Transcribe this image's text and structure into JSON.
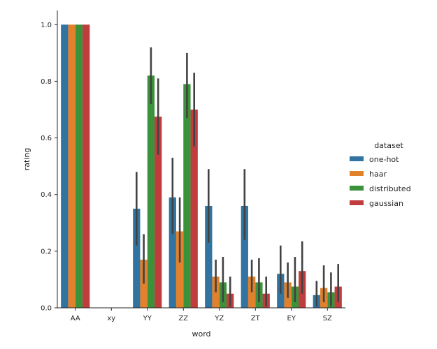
{
  "chart_data": {
    "type": "bar",
    "title": "",
    "xlabel": "word",
    "ylabel": "rating",
    "ylim": [
      0,
      1.05
    ],
    "yticks": [
      0.0,
      0.2,
      0.4,
      0.6,
      0.8,
      1.0
    ],
    "ytick_labels": [
      "0.0",
      "0.2",
      "0.4",
      "0.6",
      "0.8",
      "1.0"
    ],
    "categories": [
      "AA",
      "xy",
      "YY",
      "ZZ",
      "YZ",
      "ZT",
      "EY",
      "SZ"
    ],
    "legend_title": "dataset",
    "legend_position": "right",
    "series": [
      {
        "name": "one-hot",
        "color": "#3274a1",
        "values": [
          1.0,
          0.0,
          0.35,
          0.39,
          0.36,
          0.36,
          0.12,
          0.045
        ],
        "ci": [
          [
            1.0,
            1.0
          ],
          [
            0,
            0
          ],
          [
            0.22,
            0.48
          ],
          [
            0.26,
            0.53
          ],
          [
            0.23,
            0.49
          ],
          [
            0.24,
            0.49
          ],
          [
            0.05,
            0.22
          ],
          [
            0.005,
            0.095
          ]
        ]
      },
      {
        "name": "haar",
        "color": "#e1812c",
        "values": [
          1.0,
          0.0,
          0.17,
          0.27,
          0.11,
          0.11,
          0.09,
          0.07
        ],
        "ci": [
          [
            1.0,
            1.0
          ],
          [
            0,
            0
          ],
          [
            0.085,
            0.26
          ],
          [
            0.16,
            0.39
          ],
          [
            0.055,
            0.17
          ],
          [
            0.055,
            0.17
          ],
          [
            0.035,
            0.16
          ],
          [
            0.02,
            0.15
          ]
        ]
      },
      {
        "name": "distributed",
        "color": "#3a923a",
        "values": [
          1.0,
          0.0,
          0.82,
          0.79,
          0.09,
          0.09,
          0.075,
          0.055
        ],
        "ci": [
          [
            1.0,
            1.0
          ],
          [
            0,
            0
          ],
          [
            0.72,
            0.92
          ],
          [
            0.67,
            0.9
          ],
          [
            0.02,
            0.18
          ],
          [
            0.02,
            0.175
          ],
          [
            0.02,
            0.18
          ],
          [
            0.005,
            0.125
          ]
        ]
      },
      {
        "name": "gaussian",
        "color": "#c03d3e",
        "values": [
          1.0,
          0.0,
          0.675,
          0.7,
          0.05,
          0.05,
          0.13,
          0.075
        ],
        "ci": [
          [
            1.0,
            1.0
          ],
          [
            0,
            0
          ],
          [
            0.54,
            0.81
          ],
          [
            0.57,
            0.83
          ],
          [
            0.005,
            0.11
          ],
          [
            0.005,
            0.11
          ],
          [
            0.05,
            0.235
          ],
          [
            0.02,
            0.155
          ]
        ]
      }
    ]
  }
}
